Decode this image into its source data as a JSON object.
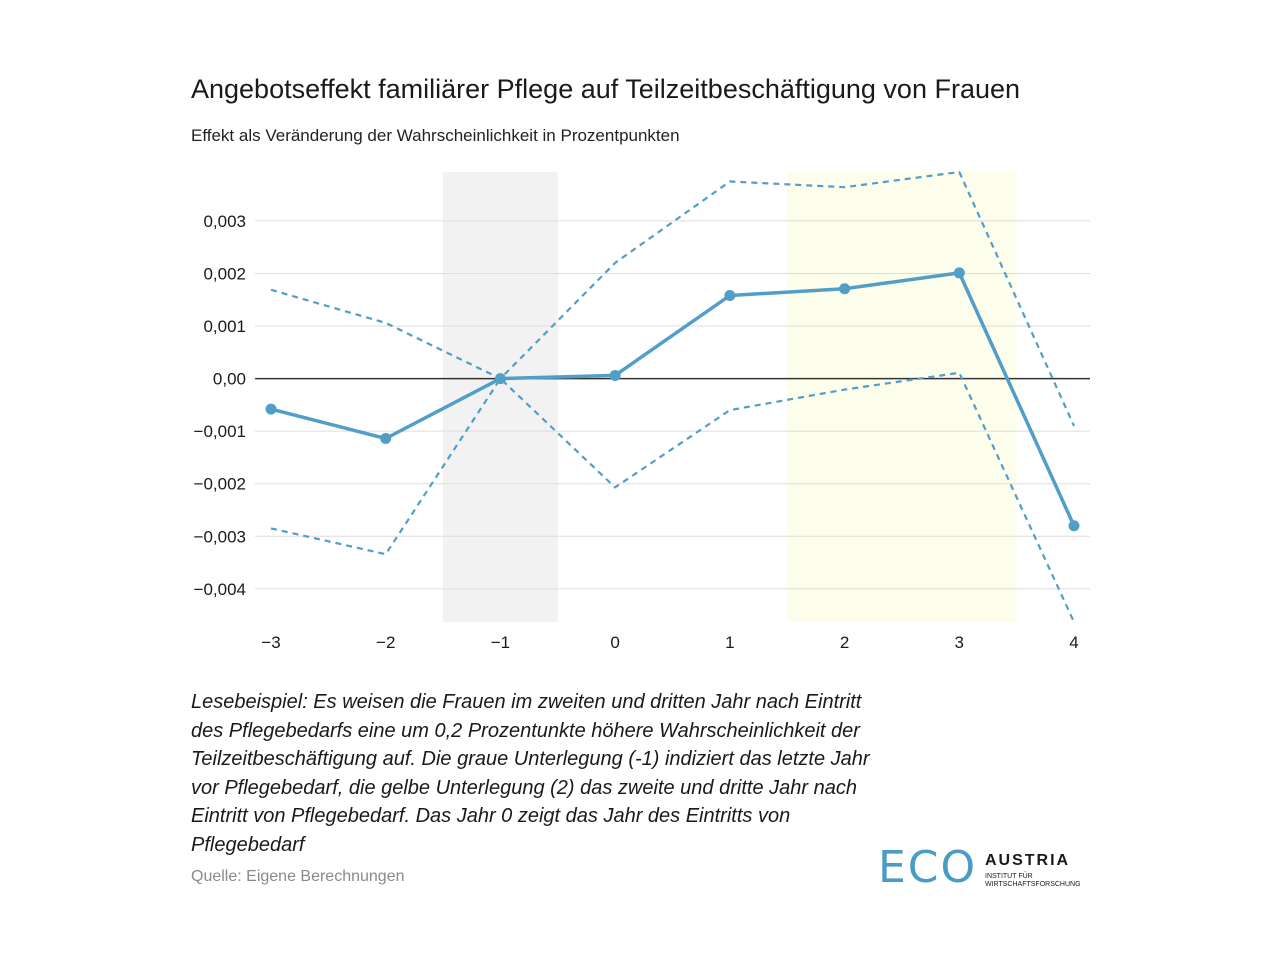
{
  "title": "Angebotseffekt familiärer Pflege auf Teilzeitbeschäftigung von Frauen",
  "subtitle": "Effekt als Veränderung der Wahrscheinlichkeit in Prozentpunkten",
  "note": "Lesebeispiel: Es weisen die Frauen im zweiten und dritten Jahr nach Eintritt des Pflegebedarfs eine um 0,2 Prozentunkte höhere Wahrscheinlichkeit der Teilzeitbeschäftigung auf. Die graue Unterlegung (-1) indiziert das letzte Jahr vor Pflegebedarf, die gelbe Unterlegung (2) das zweite und dritte Jahr nach Eintritt von Pflegebedarf. Das Jahr 0 zeigt das Jahr des Eintritts von Pflegebedarf",
  "source": "Quelle: Eigene Berechnungen",
  "logo": {
    "eco": "ECO",
    "austria": "AUSTRIA",
    "sub_line1": "INSTITUT FÜR",
    "sub_line2": "WIRTSCHAFTSFORSCHUNG"
  },
  "colors": {
    "line": "#519ec8",
    "grey_band": "#f2f2f2",
    "yellow_band": "#fdfdeb",
    "grid": "#dddddd",
    "zero_line": "#333333"
  },
  "chart_data": {
    "type": "line",
    "x": [
      -3,
      -2,
      -1,
      0,
      1,
      2,
      3,
      4
    ],
    "x_tick_labels": [
      "−3",
      "−2",
      "−1",
      "0",
      "1",
      "2",
      "3",
      "4"
    ],
    "y_ticks": [
      0.003,
      0.002,
      0.001,
      0.0,
      -0.001,
      -0.002,
      -0.003,
      -0.004
    ],
    "y_tick_labels": [
      "0,003",
      "0,002",
      "0,001",
      "0,00",
      "−0,001",
      "−0,002",
      "−0,003",
      "−0,004"
    ],
    "xlim": [
      -3,
      4
    ],
    "ylim": [
      -0.00463,
      0.00393
    ],
    "grid": true,
    "series": [
      {
        "role": "estimate",
        "style": "solid",
        "markers": true,
        "values": [
          -0.00058,
          -0.00114,
          0.0,
          6e-05,
          0.00158,
          0.00171,
          0.00201,
          -0.0028
        ]
      },
      {
        "role": "upper-bound",
        "style": "dashed",
        "markers": false,
        "values": [
          0.00169,
          0.00106,
          0.0,
          0.0022,
          0.00375,
          0.00364,
          0.00393,
          -0.0009
        ]
      },
      {
        "role": "lower-bound",
        "style": "dashed",
        "markers": false,
        "values": [
          -0.00285,
          -0.00334,
          0.0,
          -0.00207,
          -0.0006,
          -0.00021,
          0.00011,
          -0.00463
        ]
      }
    ],
    "highlight_bands": [
      {
        "x_range": [
          -1.5,
          -0.5
        ],
        "color": "grey"
      },
      {
        "x_range": [
          1.5,
          3.5
        ],
        "color": "yellow"
      }
    ]
  }
}
